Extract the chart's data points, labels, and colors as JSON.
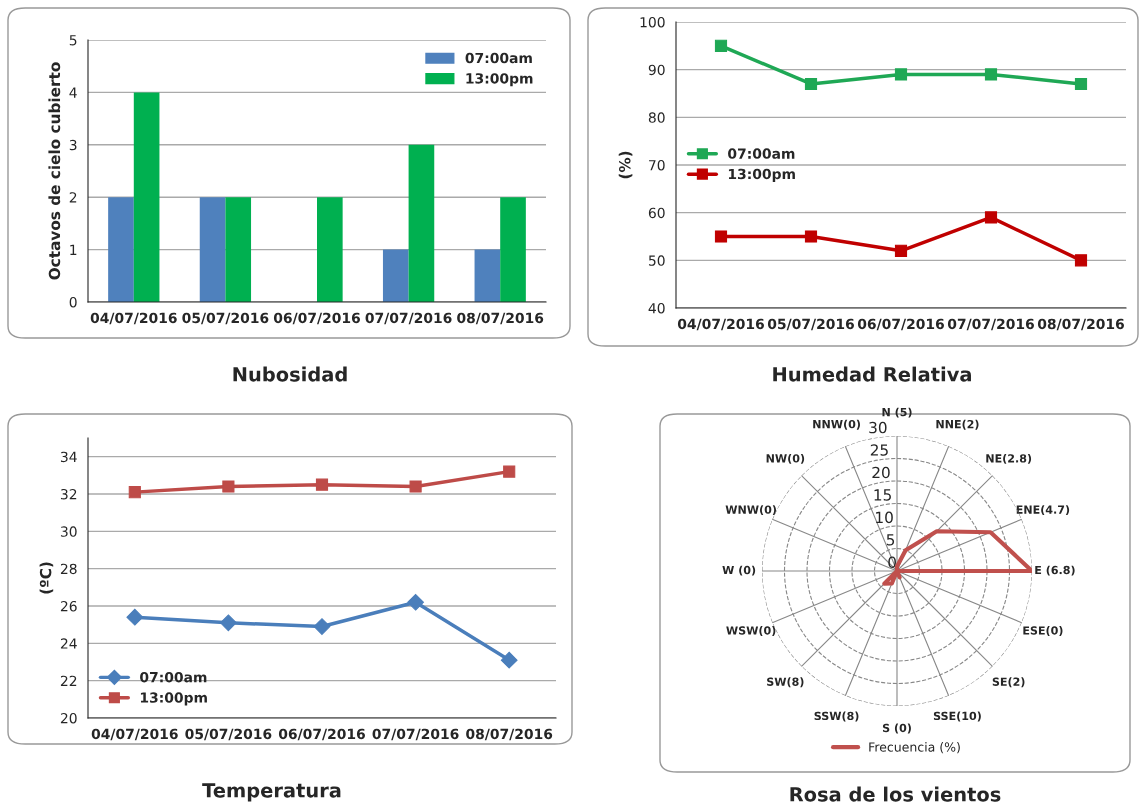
{
  "chart_data": [
    {
      "type": "bar",
      "title": "Nubosidad",
      "ylabel": "Octavos de cielo cubierto",
      "categories": [
        "04/07/2016",
        "05/07/2016",
        "06/07/2016",
        "07/07/2016",
        "08/07/2016"
      ],
      "series": [
        {
          "name": "07:00am",
          "color": "#4f81bd",
          "values": [
            2,
            2,
            0,
            1,
            1
          ]
        },
        {
          "name": "13:00pm",
          "color": "#00b050",
          "values": [
            4,
            2,
            2,
            3,
            2
          ]
        }
      ],
      "ylim": [
        0,
        5
      ],
      "yticks": [
        0,
        1,
        2,
        3,
        4,
        5
      ],
      "grid": "y",
      "legend": "top right"
    },
    {
      "type": "line",
      "title": "Humedad Relativa",
      "ylabel": "(%)",
      "categories": [
        "04/07/2016",
        "05/07/2016",
        "06/07/2016",
        "07/07/2016",
        "08/07/2016"
      ],
      "series": [
        {
          "name": "07:00am",
          "color": "#1fa855",
          "values": [
            95,
            87,
            89,
            89,
            87
          ]
        },
        {
          "name": "13:00pm",
          "color": "#c00000",
          "values": [
            55,
            55,
            52,
            59,
            50
          ]
        }
      ],
      "ylim": [
        40,
        100
      ],
      "yticks": [
        40,
        50,
        60,
        70,
        80,
        90,
        100
      ],
      "grid": "y",
      "legend": "left",
      "marker": "square"
    },
    {
      "type": "line",
      "title": "Temperatura",
      "ylabel": "(ºC)",
      "categories": [
        "04/07/2016",
        "05/07/2016",
        "06/07/2016",
        "07/07/2016",
        "08/07/2016"
      ],
      "series": [
        {
          "name": "07:00am",
          "color": "#4a7ebb",
          "values": [
            25.4,
            25.1,
            24.9,
            26.2,
            23.1
          ],
          "marker": "diamond"
        },
        {
          "name": "13:00pm",
          "color": "#be4b48",
          "values": [
            32.1,
            32.4,
            32.5,
            32.4,
            33.2
          ],
          "marker": "square"
        }
      ],
      "ylim": [
        20,
        35
      ],
      "yticks": [
        20,
        22,
        24,
        26,
        28,
        30,
        32,
        34
      ],
      "grid": "y",
      "legend": "bottom left"
    },
    {
      "type": "radar",
      "title": "Rosa de los vientos",
      "categories": [
        "N (5)",
        "NNE(2)",
        "NE(2.8)",
        "ENE(4.7)",
        "E (6.8)",
        "ESE(0)",
        "SE(2)",
        "SSE(10)",
        "S (0)",
        "SSW(8)",
        "SW(8)",
        "WSW(0)",
        "W (0)",
        "WNW(0)",
        "NW(0)",
        "NNW(0)"
      ],
      "series": [
        {
          "name": "Frecuencia (%)",
          "color": "#c0504d",
          "values": [
            1,
            5,
            12.5,
            22.5,
            30,
            0,
            0,
            1.5,
            0,
            3,
            4,
            0,
            0,
            0,
            0,
            0
          ]
        }
      ],
      "ylim": [
        0,
        30
      ],
      "yticks": [
        0,
        5,
        10,
        15,
        20,
        25,
        30
      ],
      "grid": true,
      "legend": "bottom"
    }
  ]
}
